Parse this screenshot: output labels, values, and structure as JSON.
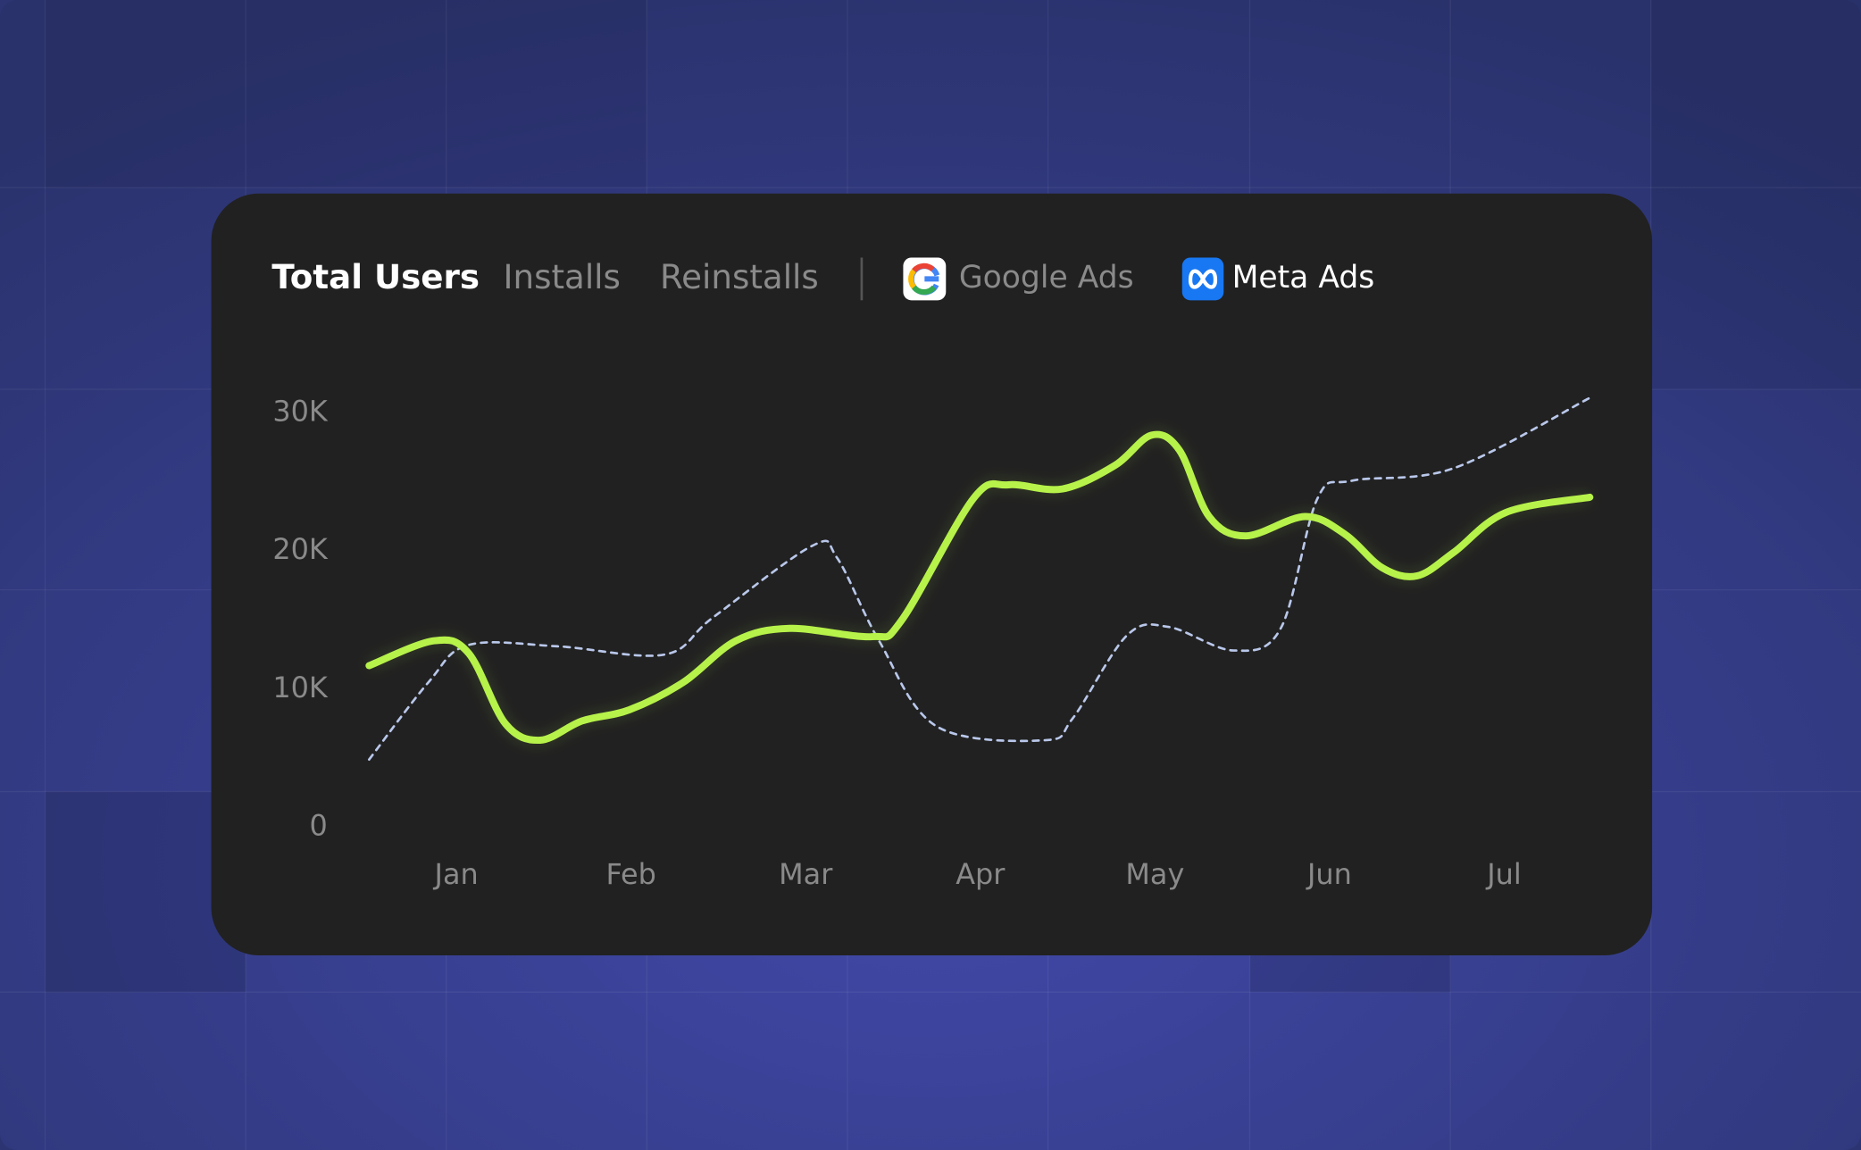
{
  "tabs": [
    "Total Users",
    "Installs",
    "Reinstalls"
  ],
  "active_tab": 0,
  "chart_data": {
    "type": "line",
    "series": [
      {
        "name": "Google Ads",
        "color": "#b9c7ea",
        "dashed": true,
        "highlighted": false,
        "x": [
          -0.5,
          -0.16,
          0.07,
          0.58,
          1.19,
          1.47,
          2.04,
          2.18,
          2.42,
          2.75,
          3.37,
          3.53,
          3.84,
          4.08,
          4.45,
          4.72,
          4.93,
          5.13,
          5.71,
          6.49
        ],
        "values": [
          4900,
          10500,
          13200,
          13100,
          12500,
          15200,
          20400,
          19500,
          13500,
          7300,
          6300,
          7900,
          13900,
          14500,
          12800,
          14400,
          23800,
          25100,
          26000,
          31100
        ]
      },
      {
        "name": "Meta Ads",
        "color": "#b6f24a",
        "dashed": false,
        "highlighted": true,
        "x": [
          -0.5,
          -0.13,
          0.07,
          0.28,
          0.48,
          0.72,
          0.99,
          1.3,
          1.6,
          1.91,
          2.38,
          2.55,
          2.96,
          3.16,
          3.47,
          3.77,
          3.98,
          4.14,
          4.31,
          4.52,
          4.86,
          5.09,
          5.3,
          5.5,
          5.71,
          6.01,
          6.49
        ],
        "values": [
          11700,
          13500,
          12600,
          7500,
          6300,
          7700,
          8500,
          10500,
          13500,
          14400,
          13800,
          15000,
          23800,
          24800,
          24500,
          26200,
          28400,
          27300,
          22500,
          21100,
          22500,
          21200,
          18800,
          18200,
          19900,
          22800,
          23900
        ]
      }
    ],
    "xlim": [
      -0.5,
      6.5
    ],
    "xticks": [
      {
        "value": 0,
        "label": "Jan"
      },
      {
        "value": 1,
        "label": "Feb"
      },
      {
        "value": 2,
        "label": "Mar"
      },
      {
        "value": 3,
        "label": "Apr"
      },
      {
        "value": 4,
        "label": "May"
      },
      {
        "value": 5,
        "label": "Jun"
      },
      {
        "value": 6,
        "label": "Jul"
      }
    ],
    "ylim": [
      0,
      30000
    ],
    "yticks": [
      0,
      {
        "value": 10000,
        "label": "10K"
      },
      {
        "value": 20000,
        "label": "20K"
      },
      {
        "value": 30000,
        "label": "30K"
      }
    ],
    "grid": false
  }
}
